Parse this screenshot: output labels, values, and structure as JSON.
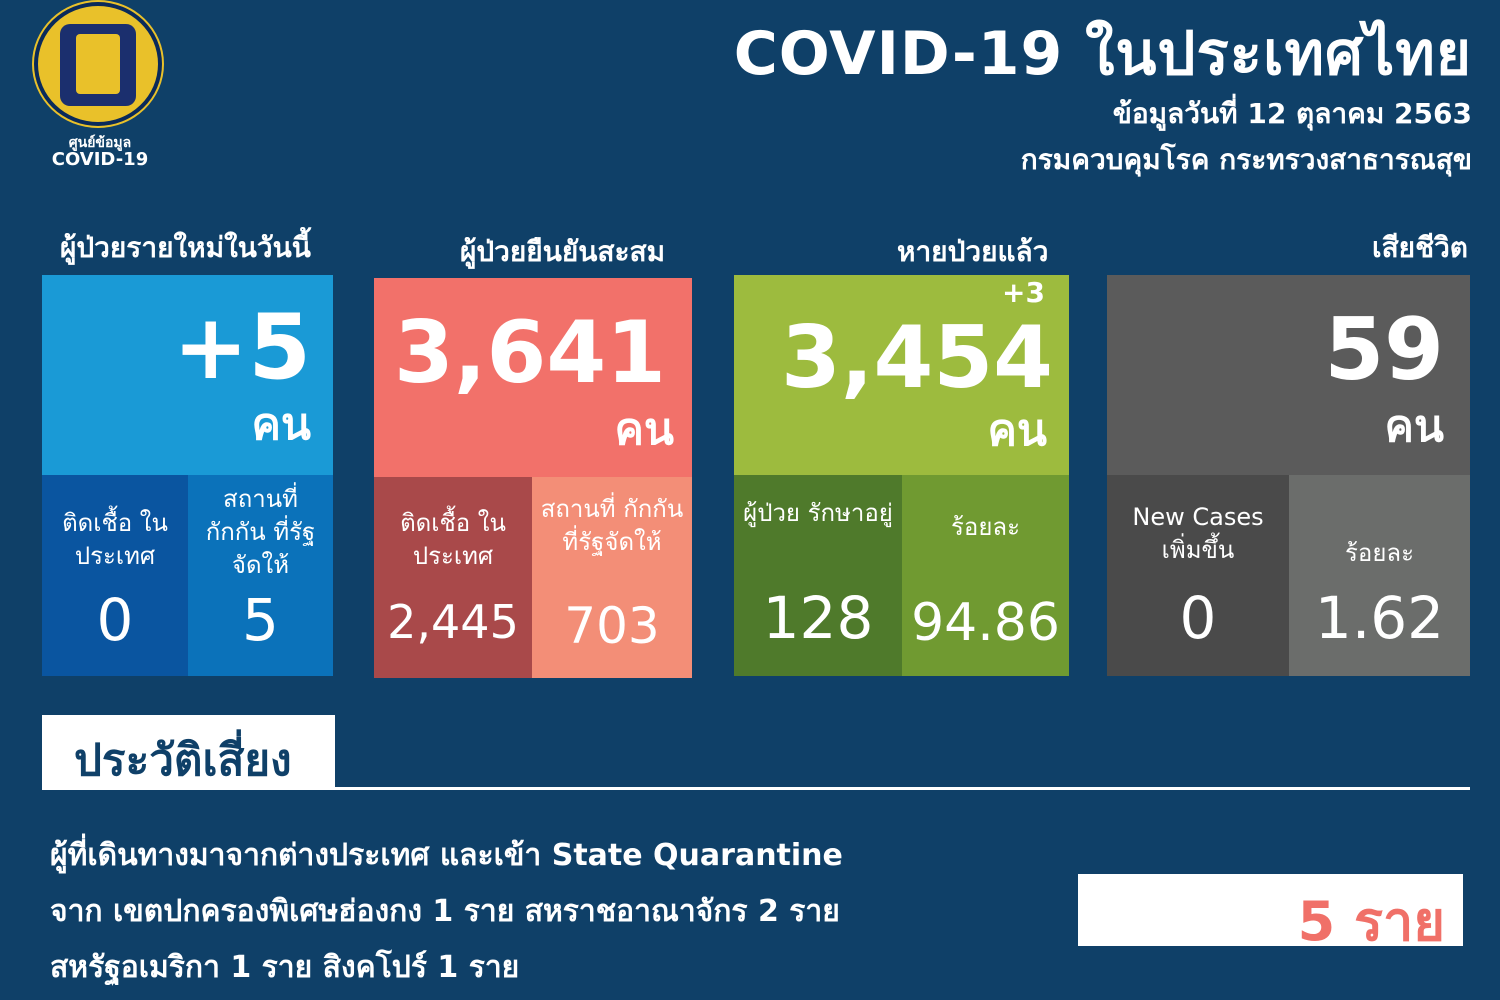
{
  "logo": {
    "line1": "ศูนย์ข้อมูล",
    "line2": "COVID-19"
  },
  "header": {
    "title": "COVID-19 ในประเทศไทย",
    "date": "ข้อมูลวันที่ 12 ตุลาคม 2563",
    "source": "กรมควบคุมโรค กระทรวงสาธารณสุข"
  },
  "cards": [
    {
      "label": "ผู้ป่วยรายใหม่ในวันนี้",
      "value": "+5",
      "unit": "คน",
      "color": "#1a9ad6",
      "subs": [
        {
          "label": "ติดเชื้อ ในประเทศ",
          "value": "0",
          "color": "#0a55a0"
        },
        {
          "label": "สถานที่ กักกัน ที่รัฐจัดให้",
          "value": "5",
          "color": "#0b72ba"
        }
      ]
    },
    {
      "label": "ผู้ป่วยยืนยันสะสม",
      "value": "3,641",
      "unit": "คน",
      "color": "#f2716a",
      "subs": [
        {
          "label": "ติดเชื้อ ในประเทศ",
          "value": "2,445",
          "color": "#a9494a"
        },
        {
          "label": "สถานที่ กักกัน ที่รัฐจัดให้",
          "value": "703",
          "color": "#f38e77"
        }
      ]
    },
    {
      "label": "หายป่วยแล้ว",
      "value": "3,454",
      "delta": "+3",
      "unit": "คน",
      "color": "#9dbb3e",
      "subs": [
        {
          "label": "ผู้ป่วย รักษาอยู่",
          "value": "128",
          "color": "#4f7a2b"
        },
        {
          "label": "ร้อยละ",
          "value": "94.86",
          "color": "#709a31"
        }
      ]
    },
    {
      "label": "เสียชีวิต",
      "value": "59",
      "unit": "คน",
      "color": "#5b5b5b",
      "subs": [
        {
          "label": "New Cases เพิ่มขึ้น",
          "value": "0",
          "color": "#4a4a4a"
        },
        {
          "label": "ร้อยละ",
          "value": "1.62",
          "color": "#6b6d6b"
        }
      ]
    }
  ],
  "risk": {
    "heading": "ประวัติเสี่ยง",
    "lines": [
      "ผู้ที่เดินทางมาจากต่างประเทศ และเข้า State Quarantine",
      "จาก เขตปกครองพิเศษฮ่องกง 1 ราย สหราชอาณาจักร 2 ราย",
      "สหรัฐอเมริกา 1 ราย สิงคโปร์ 1 ราย"
    ],
    "total": "5 ราย"
  }
}
